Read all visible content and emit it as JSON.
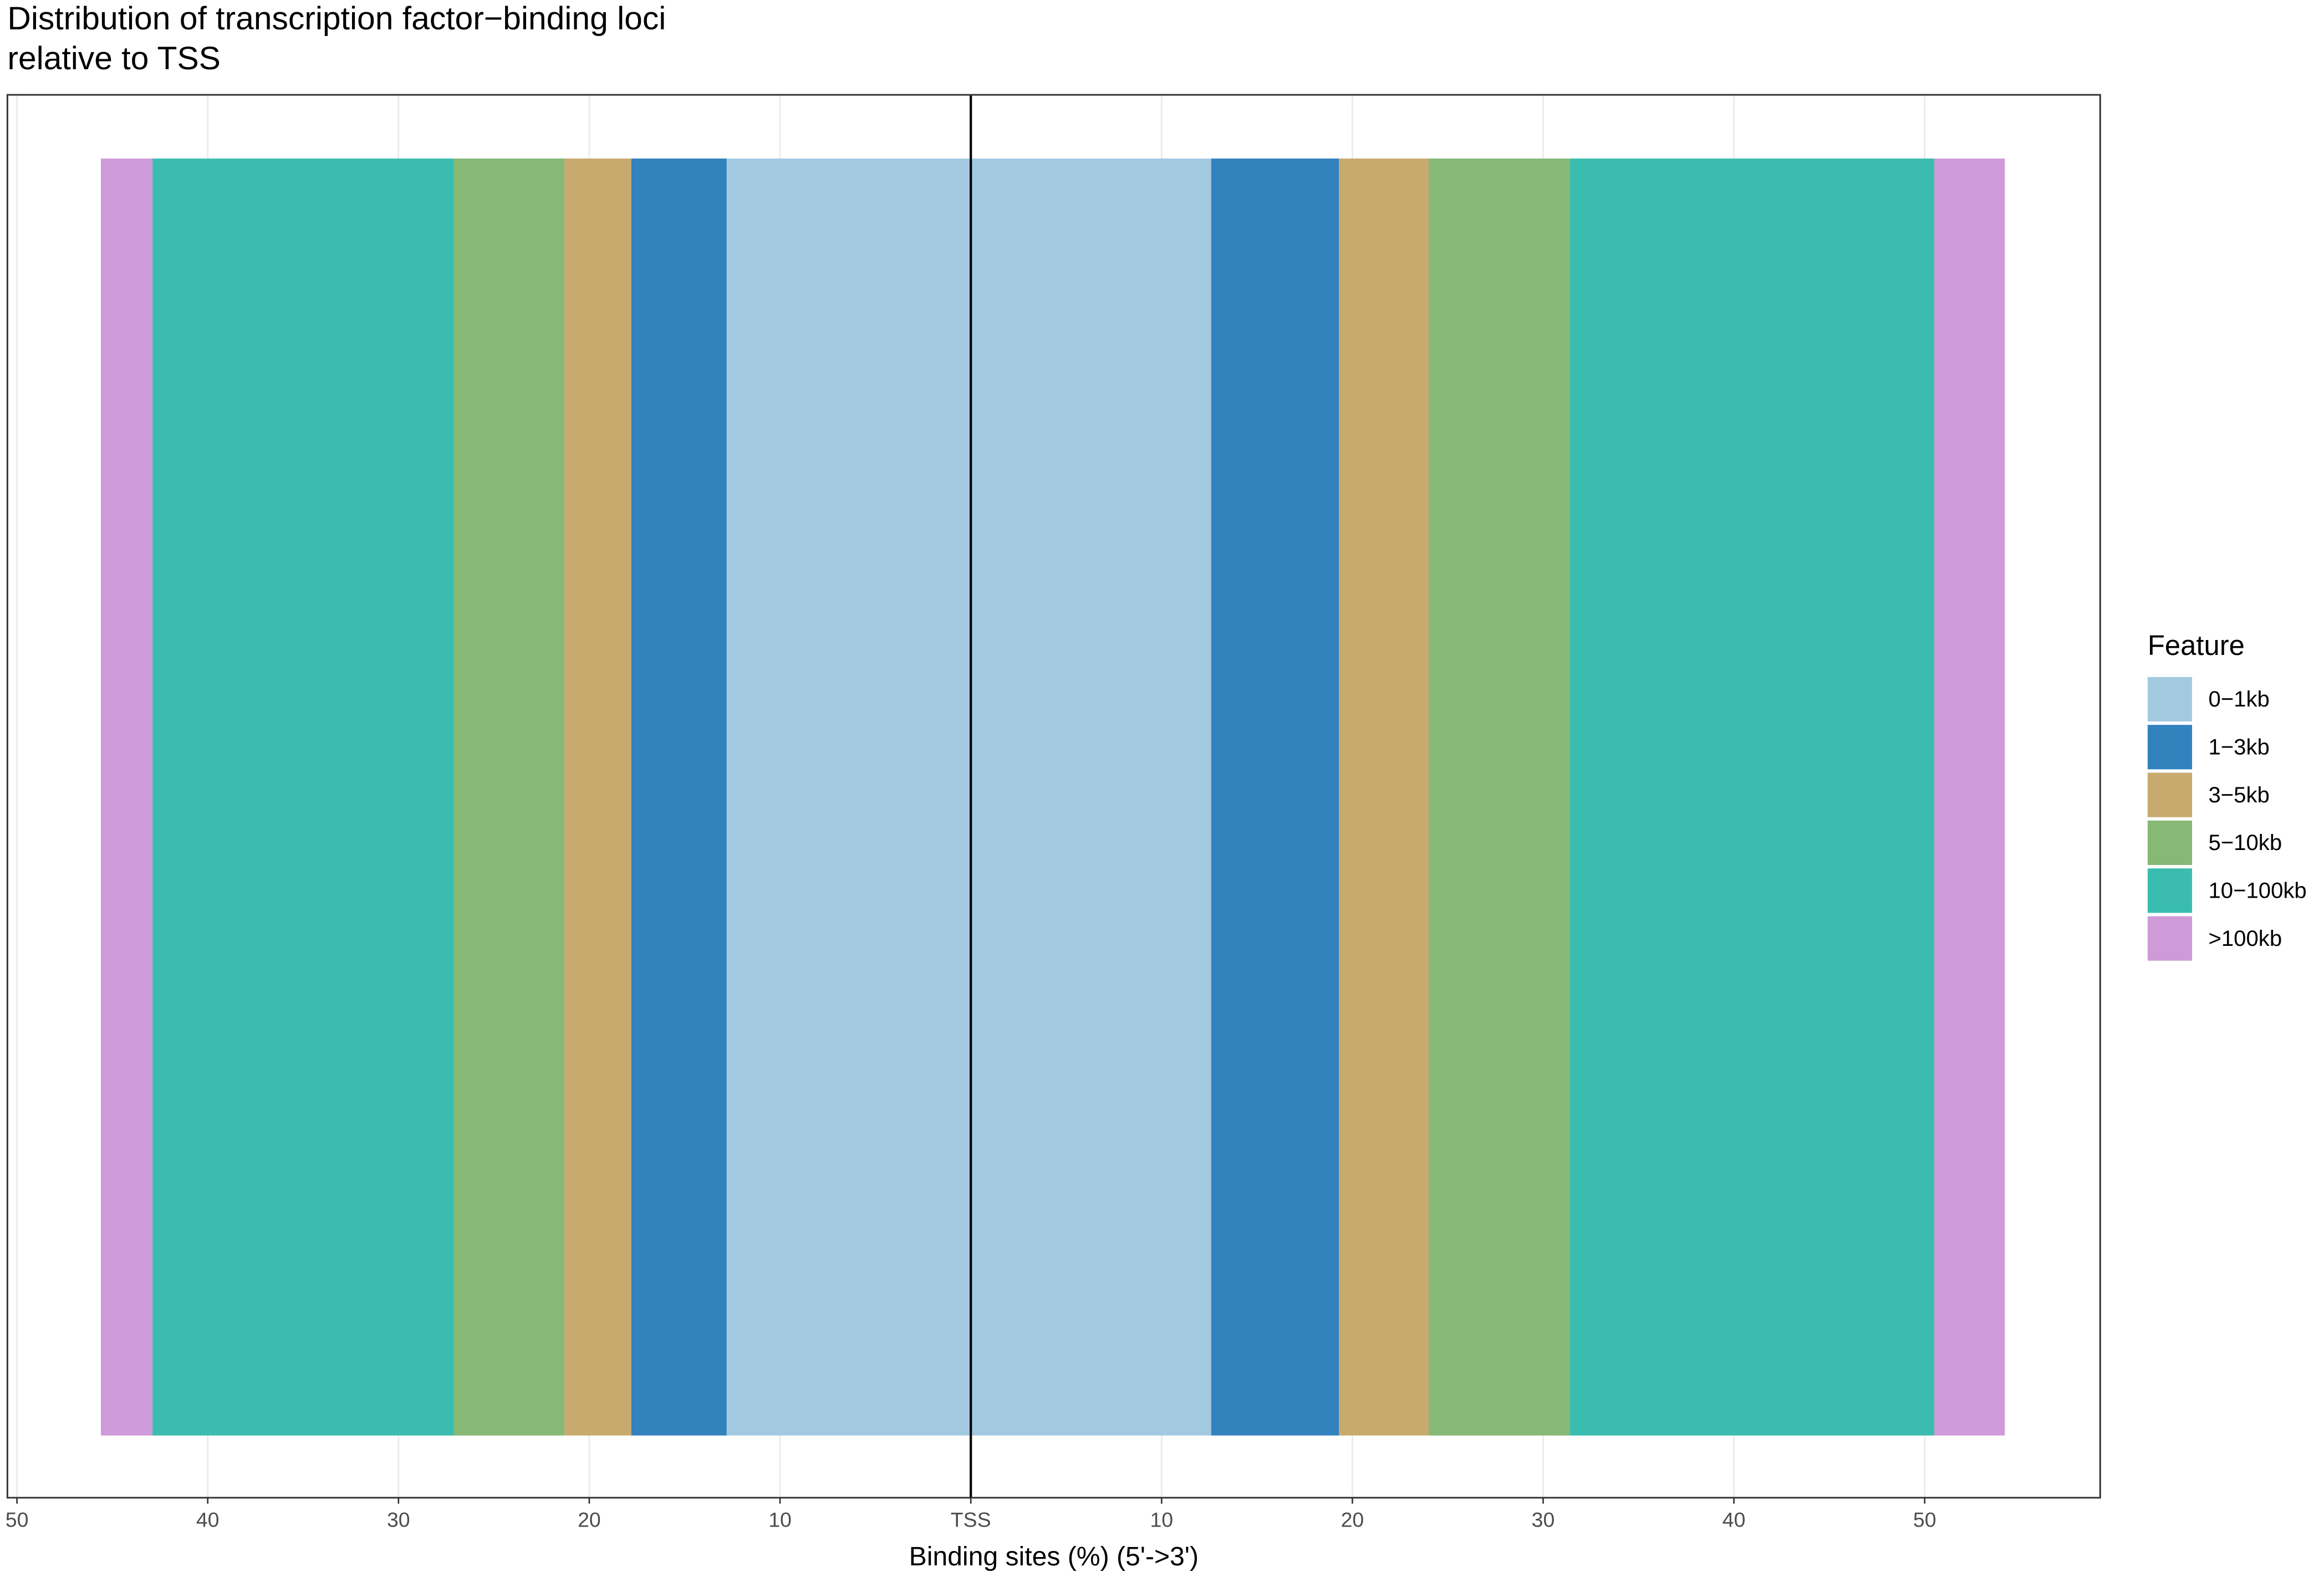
{
  "chart_data": {
    "type": "diverging-bar",
    "title": [
      "Distribution of transcription factor−binding loci",
      "relative to TSS"
    ],
    "x_label": "Binding sites (%) (5'->3')",
    "legend_title": "Feature",
    "legend_position": "right",
    "grid": true,
    "xlim": [
      -50.5,
      59.2
    ],
    "xticks": [
      {
        "value": -50,
        "label": "50"
      },
      {
        "value": -40,
        "label": "40"
      },
      {
        "value": -30,
        "label": "30"
      },
      {
        "value": -20,
        "label": "20"
      },
      {
        "value": -10,
        "label": "10"
      },
      {
        "value": 0,
        "label": "TSS"
      },
      10,
      20,
      30,
      40,
      50
    ],
    "series": [
      {
        "name": "0−1kb",
        "color": "#a3c9e1",
        "values": [
          -12.8,
          12.6
        ]
      },
      {
        "name": "1−3kb",
        "color": "#3182bd",
        "values": [
          -5.0,
          6.7
        ]
      },
      {
        "name": "3−5kb",
        "color": "#c8a96e",
        "values": [
          -3.5,
          4.7
        ]
      },
      {
        "name": "5−10kb",
        "color": "#86b876",
        "values": [
          -5.8,
          7.4
        ]
      },
      {
        "name": "10−100kb",
        "color": "#3abdb0",
        "values": [
          -15.8,
          19.1
        ]
      },
      {
        "name": ">100kb",
        "color": "#cf9ad8",
        "values": [
          -2.7,
          3.7
        ]
      }
    ]
  }
}
